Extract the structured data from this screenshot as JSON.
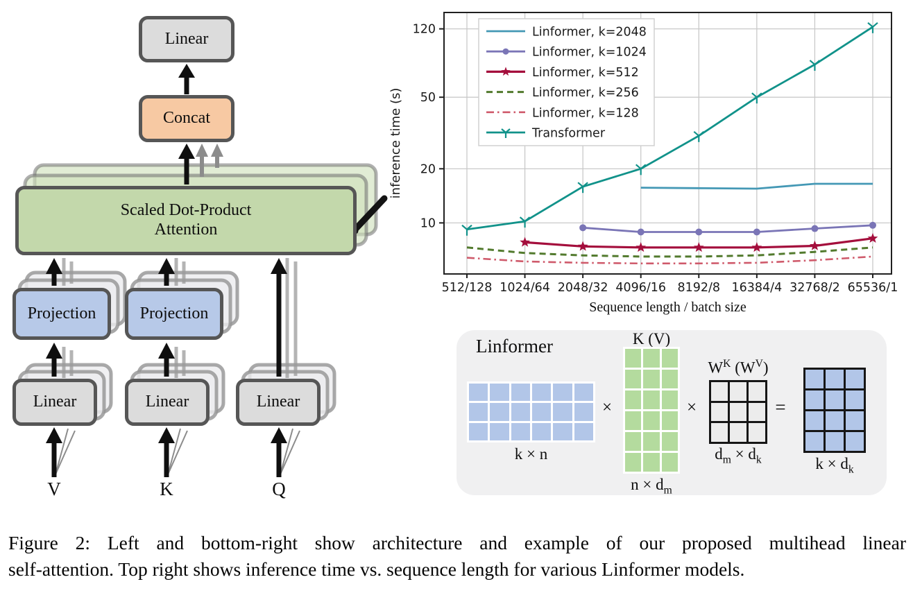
{
  "figure": {
    "caption_line1": "Figure 2: Left and bottom-right show architecture and example of our proposed multihead linear",
    "caption_line2": "self-attention. Top right shows inference time vs. sequence length for various Linformer models."
  },
  "architecture": {
    "linear_top": "Linear",
    "concat": "Concat",
    "attention_line1": "Scaled Dot-Product",
    "attention_line2": "Attention",
    "projection_v": "Projection",
    "projection_k": "Projection",
    "linear_v": "Linear",
    "linear_k": "Linear",
    "linear_q": "Linear",
    "input_v": "V",
    "input_k": "K",
    "input_q": "Q",
    "colors": {
      "attention_fill": "#c3d8ab",
      "projection_fill": "#b7c9e8",
      "linear_fill": "#dcdcdc",
      "concat_fill": "#f7c9a3",
      "box_border": "#565656"
    }
  },
  "chart_data": {
    "type": "line",
    "title": "",
    "xlabel": "Sequence length / batch size",
    "ylabel": "inference time (s)",
    "x_categories": [
      "512/128",
      "1024/64",
      "2048/32",
      "4096/16",
      "8192/8",
      "16384/4",
      "32768/2",
      "65536/1"
    ],
    "y_scale": "log",
    "y_ticks": [
      10,
      20,
      50,
      120
    ],
    "ylim": [
      5.2,
      148
    ],
    "grid": true,
    "legend_position": "upper left",
    "series": [
      {
        "name": "Linformer, k=2048",
        "color": "#4498b5",
        "dash": "solid",
        "marker": "none",
        "width": 2.8,
        "start_index": 3,
        "values": [
          15.7,
          15.6,
          15.5,
          16.5,
          16.5
        ]
      },
      {
        "name": "Linformer, k=1024",
        "color": "#7a75b6",
        "dash": "solid",
        "marker": "circle",
        "width": 2.8,
        "start_index": 2,
        "values": [
          9.4,
          8.9,
          8.9,
          8.9,
          9.3,
          9.7
        ]
      },
      {
        "name": "Linformer, k=512",
        "color": "#a40e3c",
        "dash": "solid",
        "marker": "star",
        "width": 3.2,
        "start_index": 1,
        "values": [
          7.8,
          7.4,
          7.3,
          7.3,
          7.3,
          7.45,
          8.2
        ]
      },
      {
        "name": "Linformer, k=256",
        "color": "#527a2d",
        "dash": "dashed",
        "marker": "none",
        "width": 3.0,
        "start_index": 0,
        "values": [
          7.3,
          6.8,
          6.6,
          6.5,
          6.5,
          6.6,
          6.9,
          7.3
        ]
      },
      {
        "name": "Linformer, k=128",
        "color": "#cf5a6b",
        "dash": "dashdot",
        "marker": "none",
        "width": 2.6,
        "start_index": 0,
        "values": [
          6.4,
          6.1,
          6.0,
          5.95,
          5.95,
          6.0,
          6.2,
          6.5
        ]
      },
      {
        "name": "Transformer",
        "color": "#11928a",
        "dash": "solid",
        "marker": "tri",
        "width": 2.8,
        "start_index": 0,
        "values": [
          9.2,
          10.2,
          15.9,
          20.0,
          30.5,
          50.0,
          76.0,
          123.0
        ]
      }
    ]
  },
  "matrix_panel": {
    "title": "Linformer",
    "multiply_sign": "×",
    "equals_sign": "=",
    "kn": {
      "rows": 3,
      "cols": 6,
      "cell_color": "#b2c6e8",
      "label": "k × n"
    },
    "kv": {
      "rows": 6,
      "cols": 3,
      "cell_color": "#b4db9e",
      "top_label": "K (V)",
      "bottom": {
        "p1": "n × d",
        "sub1": "m"
      }
    },
    "w": {
      "rows": 3,
      "cols": 3,
      "cell_color": "#ececec",
      "top": {
        "p1": "W",
        "s1": "K",
        "p2": " (W",
        "s2": "V",
        "p3": ")"
      },
      "bottom": {
        "p1": "d",
        "sub1": "m",
        "p2": " × d",
        "sub2": "k"
      }
    },
    "result": {
      "rows": 4,
      "cols": 3,
      "cell_color": "#b2c6e8",
      "bottom": {
        "p1": "k × d",
        "sub1": "k"
      }
    }
  }
}
